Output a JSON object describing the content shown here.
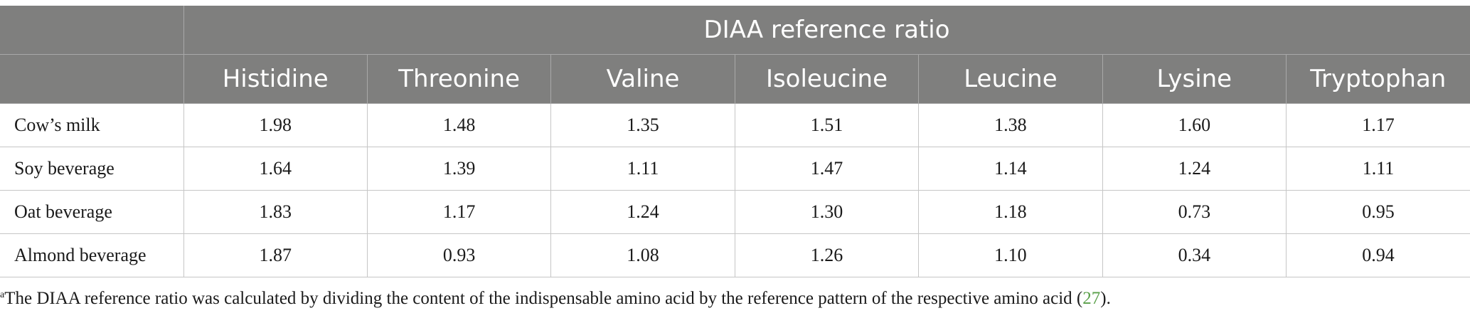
{
  "table": {
    "group_header": "DIAA reference ratio",
    "corner_label": "",
    "columns": [
      "Histidine",
      "Threonine",
      "Valine",
      "Isoleucine",
      "Leucine",
      "Lysine",
      "Tryptophan"
    ],
    "rows": [
      {
        "label": "Cow’s milk",
        "values": [
          "1.98",
          "1.48",
          "1.35",
          "1.51",
          "1.38",
          "1.60",
          "1.17"
        ]
      },
      {
        "label": "Soy beverage",
        "values": [
          "1.64",
          "1.39",
          "1.11",
          "1.47",
          "1.14",
          "1.24",
          "1.11"
        ]
      },
      {
        "label": "Oat beverage",
        "values": [
          "1.83",
          "1.17",
          "1.24",
          "1.30",
          "1.18",
          "0.73",
          "0.95"
        ]
      },
      {
        "label": "Almond beverage",
        "values": [
          "1.87",
          "0.93",
          "1.08",
          "1.26",
          "1.10",
          "0.34",
          "0.94"
        ]
      }
    ]
  },
  "footnote": {
    "marker": "a",
    "text": "The DIAA reference ratio was calculated by dividing the content of the indispensable amino acid by the reference pattern of the respective amino acid (",
    "ref": "27",
    "suffix": ")."
  },
  "colors": {
    "header_bg": "#7f7f7e",
    "header_text": "#ffffff",
    "link": "#5aa04a"
  }
}
